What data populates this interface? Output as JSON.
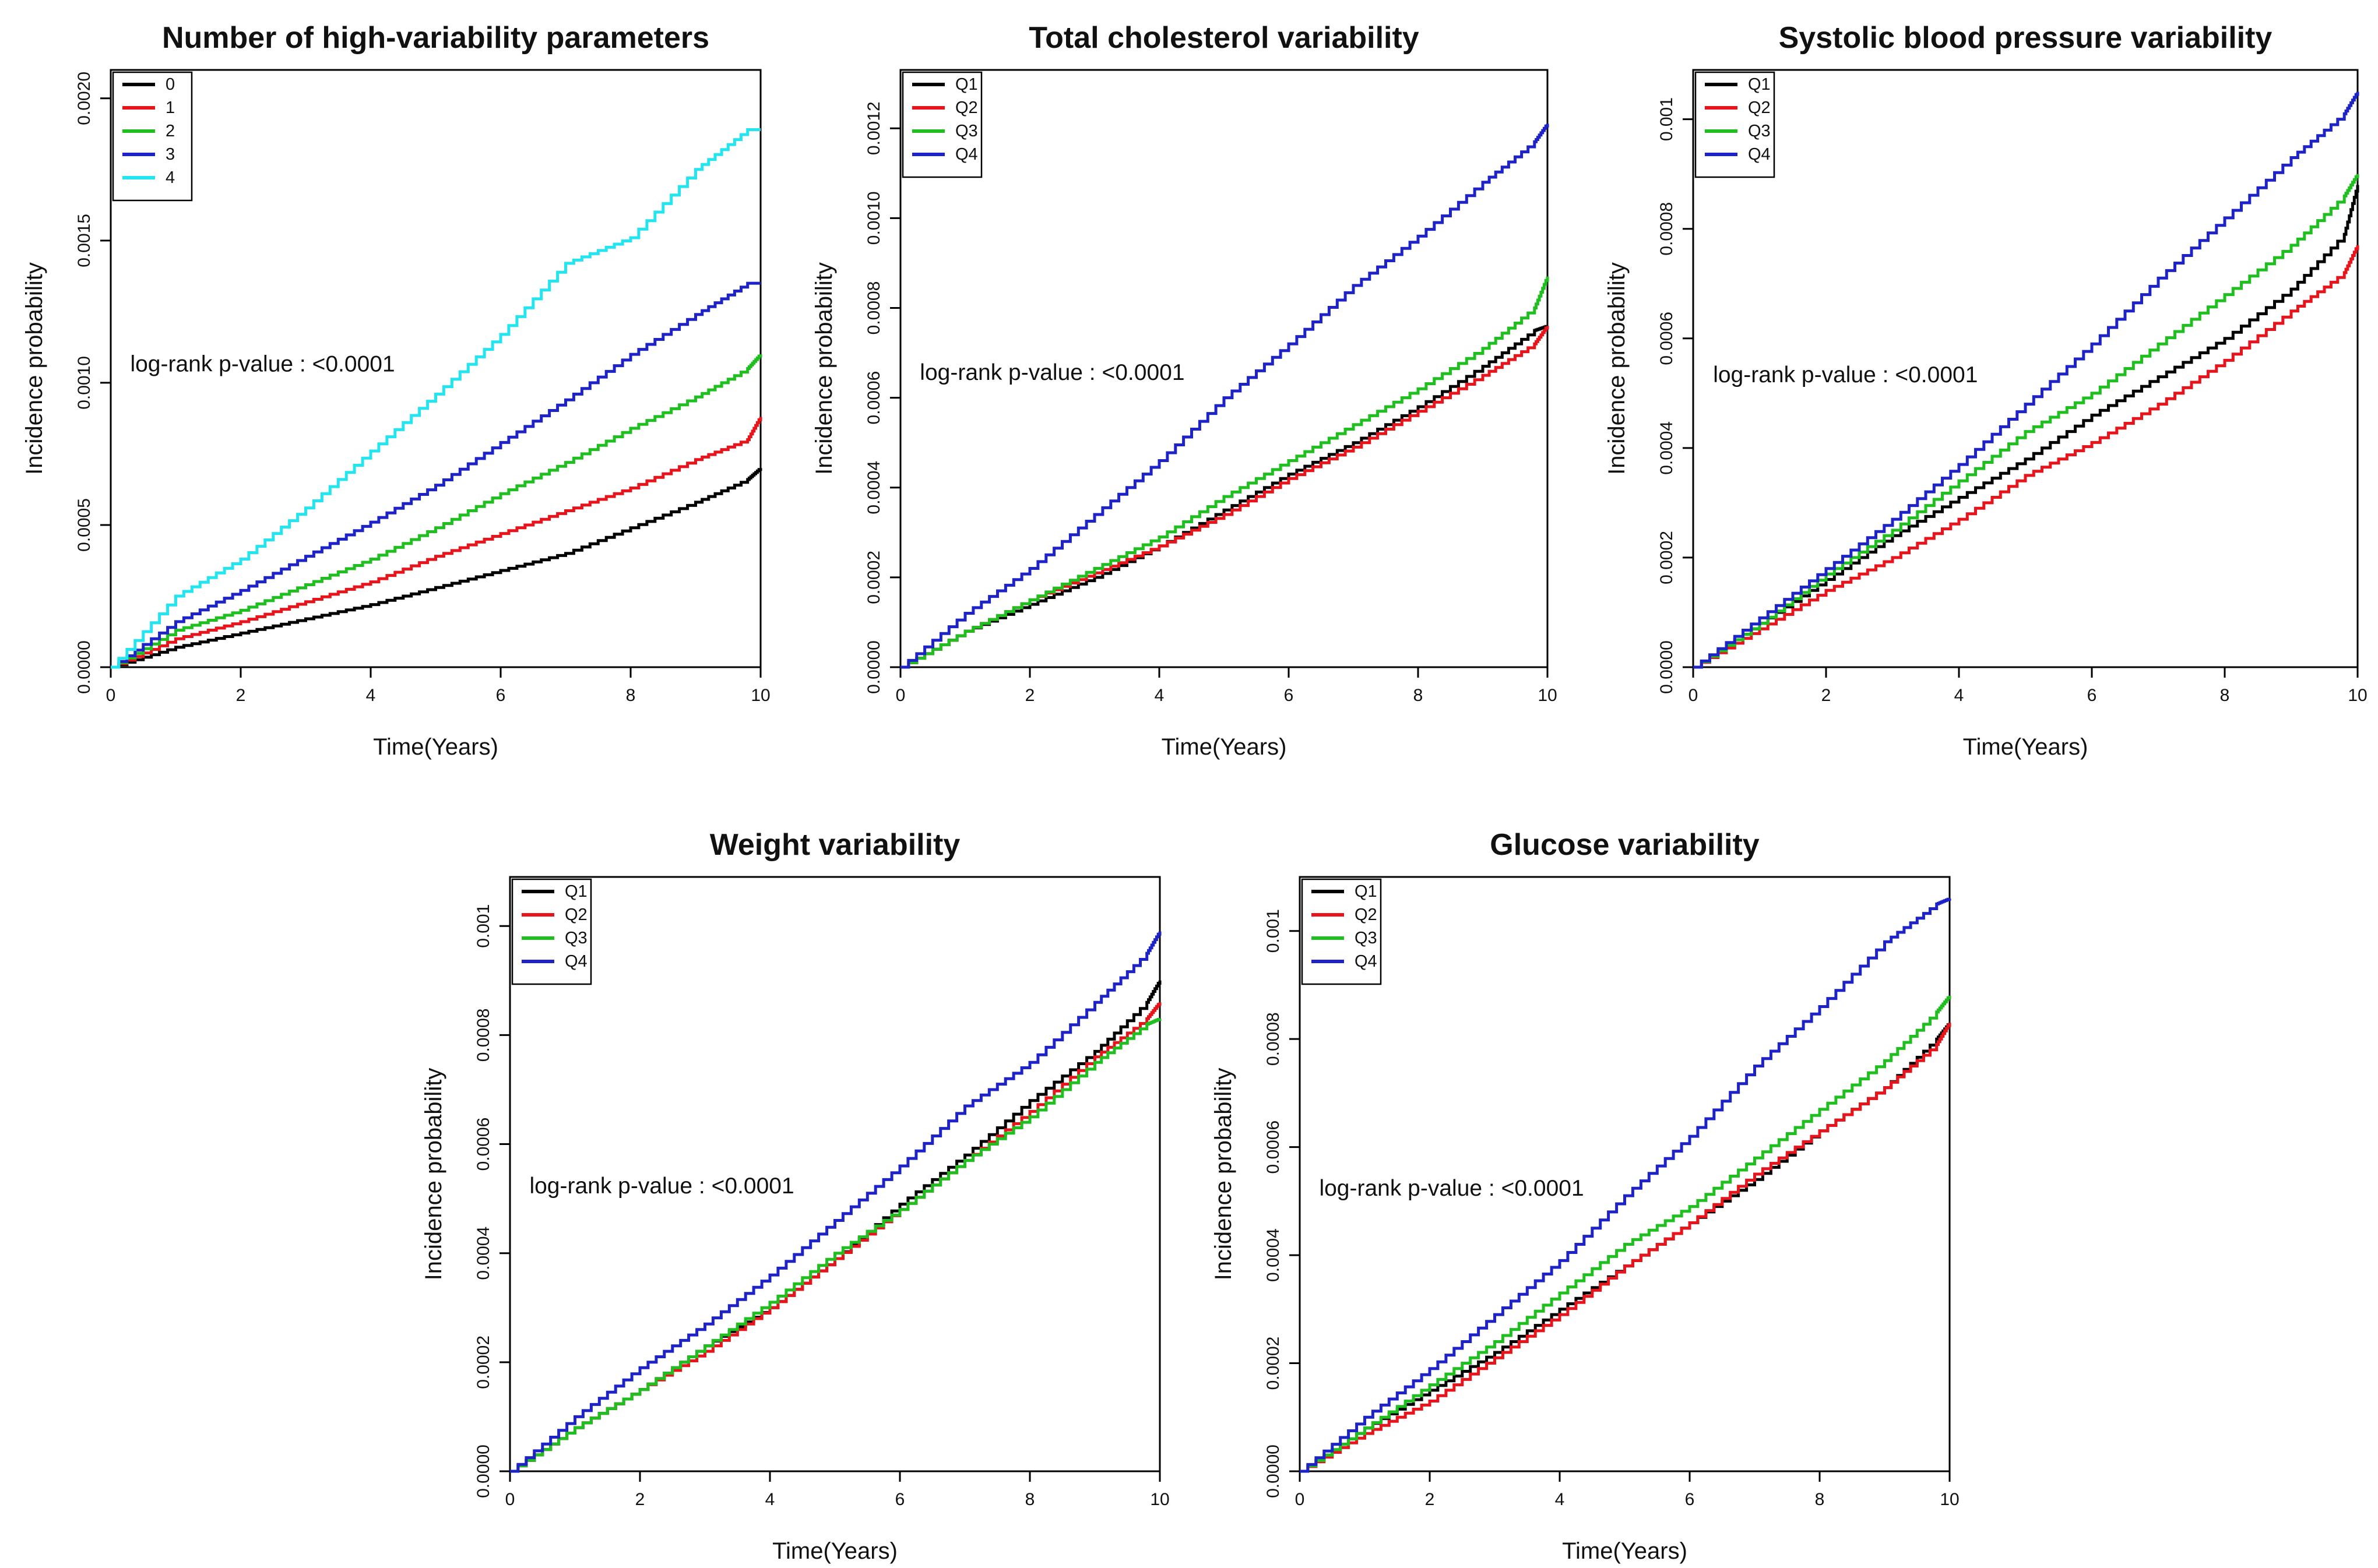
{
  "chart_data": [
    {
      "type": "line",
      "title": "Number of high-variability parameters",
      "xlabel": "Time(Years)",
      "ylabel": "Incidence probability",
      "xlim": [
        0,
        10
      ],
      "ylim": [
        0,
        0.0021
      ],
      "xticks": [
        "0",
        "2",
        "4",
        "6",
        "8",
        "10"
      ],
      "yticks": [
        {
          "value": 0,
          "label": "0.0000"
        },
        {
          "value": 0.0005,
          "label": "0.0005"
        },
        {
          "value": 0.001,
          "label": "0.0010"
        },
        {
          "value": 0.0015,
          "label": "0.0015"
        },
        {
          "value": 0.002,
          "label": "0.0020"
        }
      ],
      "annotation": "log-rank p-value : <0.0001",
      "annotation_pos": [
        0.3,
        0.00104
      ],
      "x": [
        0,
        1,
        2,
        3,
        4,
        5,
        6,
        7,
        8,
        9,
        9.8,
        10
      ],
      "series": [
        {
          "name": "0",
          "color": "#000000",
          "values": [
            0,
            7e-05,
            0.00012,
            0.00017,
            0.00022,
            0.00028,
            0.00034,
            0.0004,
            0.00049,
            0.00058,
            0.00066,
            0.0007
          ]
        },
        {
          "name": "1",
          "color": "#e8141b",
          "values": [
            0,
            0.0001,
            0.00016,
            0.00023,
            0.0003,
            0.00039,
            0.00047,
            0.00055,
            0.00063,
            0.00073,
            0.0008,
            0.00088
          ]
        },
        {
          "name": "2",
          "color": "#1ebf1e",
          "values": [
            0,
            0.00013,
            0.0002,
            0.00029,
            0.00038,
            0.00049,
            0.00061,
            0.00072,
            0.00084,
            0.00095,
            0.00105,
            0.0011
          ]
        },
        {
          "name": "3",
          "color": "#1e23c8",
          "values": [
            0,
            0.00016,
            0.00027,
            0.00039,
            0.00051,
            0.00064,
            0.00079,
            0.00094,
            0.0011,
            0.00124,
            0.00135,
            0.00135
          ]
        },
        {
          "name": "4",
          "color": "#22e5f0",
          "values": [
            0,
            0.00025,
            0.00038,
            0.00056,
            0.00076,
            0.00096,
            0.00117,
            0.00142,
            0.00151,
            0.00175,
            0.00189,
            0.00189
          ]
        }
      ],
      "legend": "top-left"
    },
    {
      "type": "line",
      "title": "Total cholesterol variability",
      "xlabel": "Time(Years)",
      "ylabel": "Incidence probability",
      "xlim": [
        0,
        10
      ],
      "ylim": [
        0,
        0.00133
      ],
      "xticks": [
        "0",
        "2",
        "4",
        "6",
        "8",
        "10"
      ],
      "yticks": [
        {
          "value": 0,
          "label": "0.0000"
        },
        {
          "value": 0.0002,
          "label": "0.0002"
        },
        {
          "value": 0.0004,
          "label": "0.0004"
        },
        {
          "value": 0.0006,
          "label": "0.0006"
        },
        {
          "value": 0.0008,
          "label": "0.0008"
        },
        {
          "value": 0.001,
          "label": "0.0010"
        },
        {
          "value": 0.0012,
          "label": "0.0012"
        }
      ],
      "annotation": "log-rank p-value : <0.0001",
      "annotation_pos": [
        0.3,
        0.00064
      ],
      "x": [
        0,
        1,
        2,
        3,
        4,
        5,
        6,
        7,
        8,
        9,
        9.8,
        10
      ],
      "series": [
        {
          "name": "Q1",
          "color": "#000000",
          "values": [
            0,
            8e-05,
            0.00014,
            0.0002,
            0.00027,
            0.00035,
            0.00043,
            0.0005,
            0.00058,
            0.00067,
            0.00075,
            0.00076
          ]
        },
        {
          "name": "Q2",
          "color": "#e8141b",
          "values": [
            0,
            8e-05,
            0.00015,
            0.00021,
            0.00027,
            0.00034,
            0.00042,
            0.00049,
            0.00057,
            0.00065,
            0.00072,
            0.00076
          ]
        },
        {
          "name": "Q3",
          "color": "#1ebf1e",
          "values": [
            0,
            8e-05,
            0.00015,
            0.00022,
            0.00029,
            0.00038,
            0.00046,
            0.00054,
            0.00062,
            0.00071,
            0.0008,
            0.00087
          ]
        },
        {
          "name": "Q4",
          "color": "#1e23c8",
          "values": [
            0,
            0.00012,
            0.00022,
            0.00034,
            0.00046,
            0.0006,
            0.00072,
            0.00085,
            0.00096,
            0.00108,
            0.00117,
            0.00121
          ]
        }
      ],
      "legend": "top-left"
    },
    {
      "type": "line",
      "title": "Systolic blood pressure variability",
      "xlabel": "Time(Years)",
      "ylabel": "Incidence probability",
      "xlim": [
        0,
        10
      ],
      "ylim": [
        0,
        0.00109
      ],
      "xticks": [
        "0",
        "2",
        "4",
        "6",
        "8",
        "10"
      ],
      "yticks": [
        {
          "value": 0,
          "label": "0.0000"
        },
        {
          "value": 0.0002,
          "label": "0.0002"
        },
        {
          "value": 0.0004,
          "label": "0.0004"
        },
        {
          "value": 0.0006,
          "label": "0.0006"
        },
        {
          "value": 0.0008,
          "label": "0.0008"
        },
        {
          "value": 0.001,
          "label": "0.001"
        }
      ],
      "annotation": "log-rank p-value : <0.0001",
      "annotation_pos": [
        0.3,
        0.00052
      ],
      "x": [
        0,
        1,
        2,
        3,
        4,
        5,
        6,
        7,
        8,
        9,
        9.8,
        10
      ],
      "series": [
        {
          "name": "Q1",
          "color": "#000000",
          "values": [
            0,
            8e-05,
            0.00016,
            0.00024,
            0.00031,
            0.00038,
            0.00046,
            0.00053,
            0.0006,
            0.00069,
            0.00079,
            0.00088
          ]
        },
        {
          "name": "Q2",
          "color": "#e8141b",
          "values": [
            0,
            7e-05,
            0.00014,
            0.0002,
            0.00027,
            0.00035,
            0.00041,
            0.00048,
            0.00056,
            0.00065,
            0.00072,
            0.00077
          ]
        },
        {
          "name": "Q3",
          "color": "#1ebf1e",
          "values": [
            0,
            8e-05,
            0.00017,
            0.00025,
            0.00034,
            0.00043,
            0.0005,
            0.00059,
            0.00068,
            0.00077,
            0.00086,
            0.0009
          ]
        },
        {
          "name": "Q4",
          "color": "#1e23c8",
          "values": [
            0,
            9e-05,
            0.00018,
            0.00027,
            0.00037,
            0.00048,
            0.00059,
            0.00071,
            0.00082,
            0.00093,
            0.00101,
            0.00105
          ]
        }
      ],
      "legend": "top-left"
    },
    {
      "type": "line",
      "title": "Weight variability",
      "xlabel": "Time(Years)",
      "ylabel": "Incidence probability",
      "xlim": [
        0,
        10
      ],
      "ylim": [
        0,
        0.00109
      ],
      "xticks": [
        "0",
        "2",
        "4",
        "6",
        "8",
        "10"
      ],
      "yticks": [
        {
          "value": 0,
          "label": "0.0000"
        },
        {
          "value": 0.0002,
          "label": "0.0002"
        },
        {
          "value": 0.0004,
          "label": "0.0004"
        },
        {
          "value": 0.0006,
          "label": "0.0006"
        },
        {
          "value": 0.0008,
          "label": "0.0008"
        },
        {
          "value": 0.001,
          "label": "0.001"
        }
      ],
      "annotation": "log-rank p-value : <0.0001",
      "annotation_pos": [
        0.3,
        0.00051
      ],
      "x": [
        0,
        1,
        2,
        3,
        4,
        5,
        6,
        7,
        8,
        9,
        9.8,
        10
      ],
      "series": [
        {
          "name": "Q1",
          "color": "#000000",
          "values": [
            0,
            8e-05,
            0.00015,
            0.00023,
            0.0003,
            0.00039,
            0.00049,
            0.00058,
            0.00068,
            0.00077,
            0.00086,
            0.0009
          ]
        },
        {
          "name": "Q2",
          "color": "#e8141b",
          "values": [
            0,
            8e-05,
            0.00015,
            0.00022,
            0.0003,
            0.00039,
            0.00048,
            0.00057,
            0.00066,
            0.00076,
            0.00083,
            0.00086
          ]
        },
        {
          "name": "Q3",
          "color": "#1ebf1e",
          "values": [
            0,
            8e-05,
            0.00015,
            0.00023,
            0.00031,
            0.0004,
            0.00048,
            0.00057,
            0.00065,
            0.00075,
            0.00082,
            0.00083
          ]
        },
        {
          "name": "Q4",
          "color": "#1e23c8",
          "values": [
            0,
            0.0001,
            0.00019,
            0.00027,
            0.00036,
            0.00046,
            0.00056,
            0.00067,
            0.00075,
            0.00086,
            0.00095,
            0.00099
          ]
        }
      ],
      "legend": "top-left"
    },
    {
      "type": "line",
      "title": "Glucose variability",
      "xlabel": "Time(Years)",
      "ylabel": "Incidence probability",
      "xlim": [
        0,
        10
      ],
      "ylim": [
        0,
        0.0011
      ],
      "xticks": [
        "0",
        "2",
        "4",
        "6",
        "8",
        "10"
      ],
      "yticks": [
        {
          "value": 0,
          "label": "0.0000"
        },
        {
          "value": 0.0002,
          "label": "0.0002"
        },
        {
          "value": 0.0004,
          "label": "0.0004"
        },
        {
          "value": 0.0006,
          "label": "0.0006"
        },
        {
          "value": 0.0008,
          "label": "0.0008"
        },
        {
          "value": 0.001,
          "label": "0.001"
        }
      ],
      "annotation": "log-rank p-value : <0.0001",
      "annotation_pos": [
        0.3,
        0.00051
      ],
      "x": [
        0,
        1,
        2,
        3,
        4,
        5,
        6,
        7,
        8,
        9,
        9.8,
        10
      ],
      "series": [
        {
          "name": "Q1",
          "color": "#000000",
          "values": [
            0,
            8e-05,
            0.00015,
            0.00022,
            0.0003,
            0.00038,
            0.00046,
            0.00054,
            0.00063,
            0.00071,
            0.0008,
            0.00083
          ]
        },
        {
          "name": "Q2",
          "color": "#e8141b",
          "values": [
            0,
            7e-05,
            0.00013,
            0.00021,
            0.00029,
            0.00038,
            0.00046,
            0.00055,
            0.00063,
            0.00071,
            0.00079,
            0.00083
          ]
        },
        {
          "name": "Q3",
          "color": "#1ebf1e",
          "values": [
            0,
            8e-05,
            0.00016,
            0.00024,
            0.00033,
            0.00042,
            0.00049,
            0.00058,
            0.00067,
            0.00076,
            0.00085,
            0.00088
          ]
        },
        {
          "name": "Q4",
          "color": "#1e23c8",
          "values": [
            0,
            0.0001,
            0.00019,
            0.00029,
            0.00039,
            0.00051,
            0.00062,
            0.00075,
            0.00086,
            0.00098,
            0.00105,
            0.00106
          ]
        }
      ],
      "legend": "top-left"
    }
  ]
}
